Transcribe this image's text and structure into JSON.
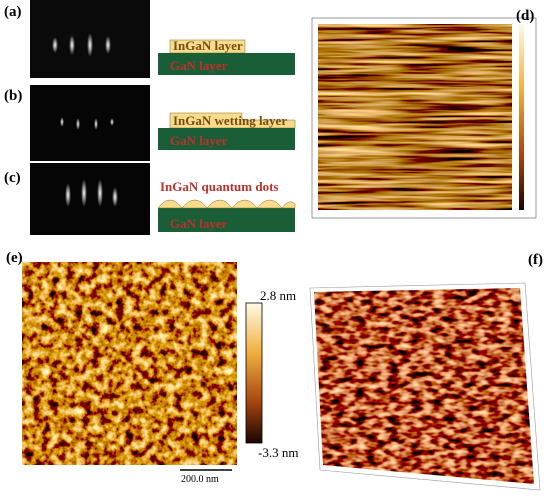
{
  "panels": {
    "a": {
      "label": "(a)",
      "top_layer": "InGaN layer",
      "bottom_layer": "GaN layer"
    },
    "b": {
      "label": "(b)",
      "top_layer": "InGaN wetting layer",
      "bottom_layer": "GaN layer"
    },
    "c": {
      "label": "(c)",
      "top_layer": "InGaN quantum dots",
      "bottom_layer": "GaN layer"
    },
    "d": {
      "label": "(d)"
    },
    "e": {
      "label": "(e)",
      "scale_max": "2.8 nm",
      "scale_min": "-3.3 nm",
      "scale_bar": "200.0 nm"
    },
    "f": {
      "label": "(f)"
    }
  }
}
